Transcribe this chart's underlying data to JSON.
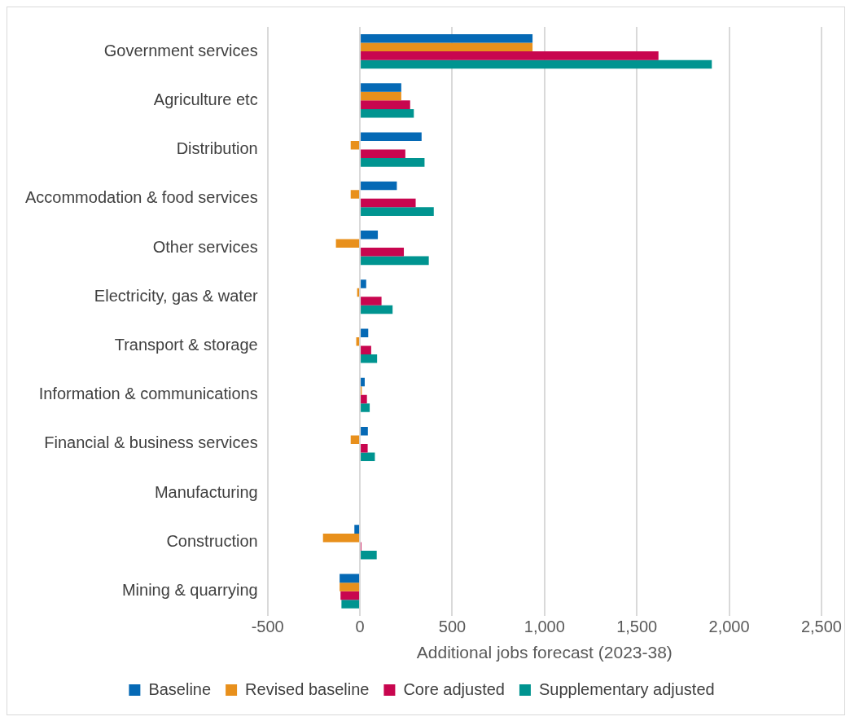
{
  "chart_data": {
    "type": "bar",
    "orientation": "horizontal",
    "xlabel": "Additional jobs forecast (2023-38)",
    "categories": [
      "Government services",
      "Agriculture etc",
      "Distribution",
      "Accommodation & food services",
      "Other services",
      "Electricity, gas & water",
      "Transport & storage",
      "Information & communications",
      "Financial & business services",
      "Manufacturing",
      "Construction",
      "Mining & quarrying"
    ],
    "series": [
      {
        "name": "Baseline",
        "color": "#0569b5",
        "values": [
          935,
          224,
          334,
          200,
          97,
          34,
          45,
          26,
          43,
          0,
          -30,
          -110
        ]
      },
      {
        "name": "Revised baseline",
        "color": "#e8901c",
        "values": [
          935,
          224,
          -50,
          -50,
          -130,
          -15,
          -20,
          10,
          -50,
          0,
          -200,
          -110
        ]
      },
      {
        "name": "Core adjusted",
        "color": "#c8064f",
        "values": [
          1617,
          272,
          246,
          302,
          238,
          117,
          61,
          38,
          42,
          0,
          8,
          -105
        ]
      },
      {
        "name": "Supplementary adjusted",
        "color": "#009490",
        "values": [
          1906,
          292,
          350,
          400,
          373,
          177,
          93,
          53,
          81,
          0,
          91,
          -100
        ]
      }
    ],
    "xlim": [
      -500,
      2500
    ],
    "xticks": [
      -500,
      0,
      500,
      {
        "value": 1000,
        "label": "1,000"
      },
      {
        "value": 1500,
        "label": "1,500"
      },
      {
        "value": 2000,
        "label": "2,000"
      },
      {
        "value": 2500,
        "label": "2,500"
      }
    ],
    "grid": "x",
    "legend": "bottom"
  }
}
